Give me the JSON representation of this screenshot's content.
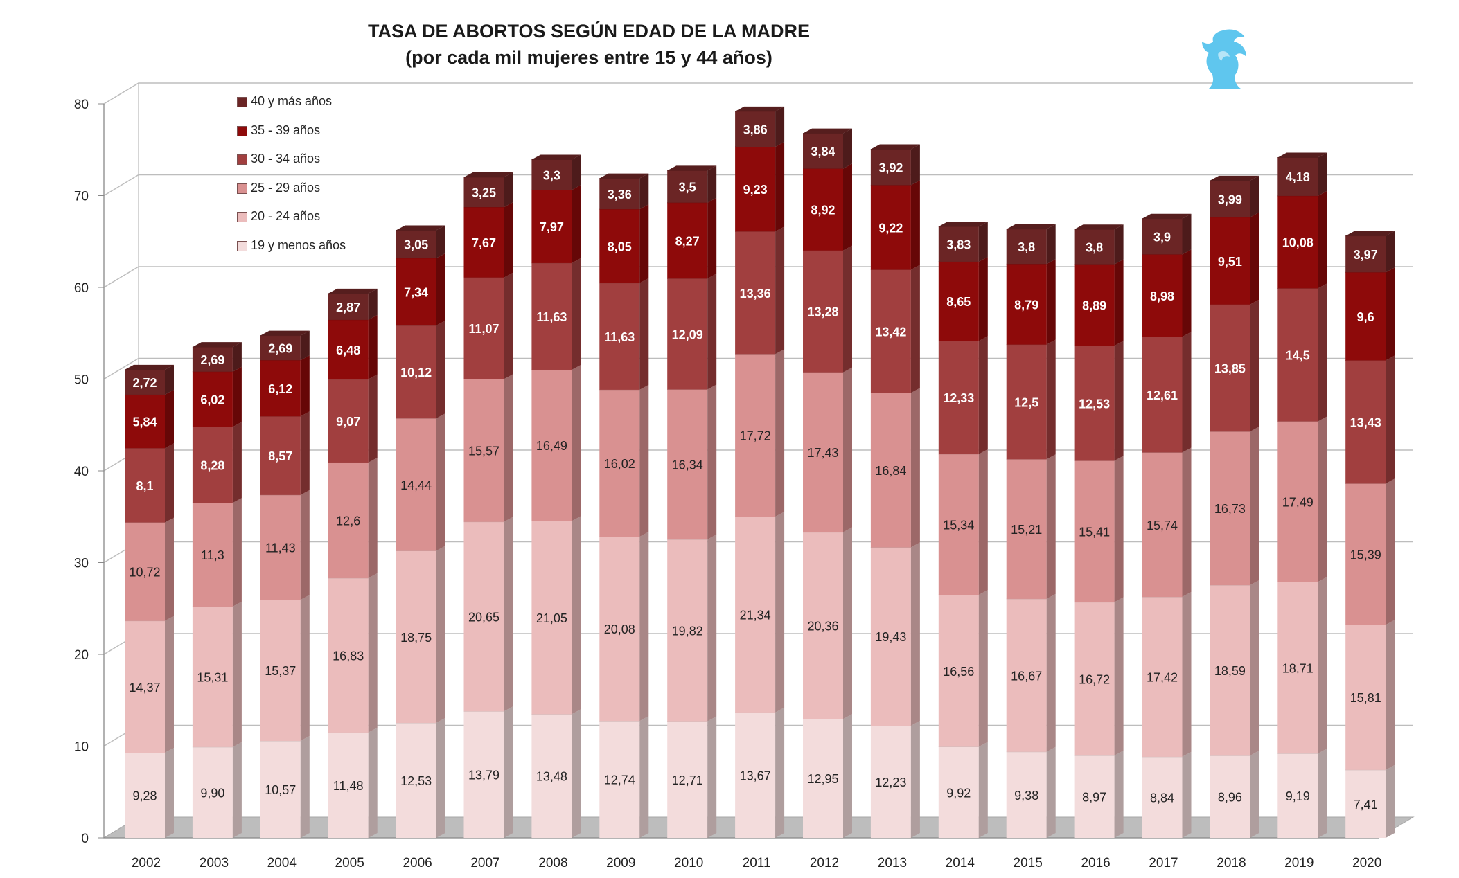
{
  "title": "TASA DE ABORTOS SEGÚN EDAD DE LA MADRE",
  "subtitle": "(por cada mil mujeres entre 15 y 44 años)",
  "colors": {
    "s19": "#f3dcdc",
    "s20": "#ebbcbc",
    "s25": "#d99191",
    "s30": "#a13f3f",
    "s35": "#8e0a0a",
    "s40": "#6b2525",
    "logo": "#5fc6ee"
  },
  "chart_data": {
    "type": "bar",
    "stacked": true,
    "categories": [
      "2002",
      "2003",
      "2004",
      "2005",
      "2006",
      "2007",
      "2008",
      "2009",
      "2010",
      "2011",
      "2012",
      "2013",
      "2014",
      "2015",
      "2016",
      "2017",
      "2018",
      "2019",
      "2020"
    ],
    "ylim": [
      0,
      80
    ],
    "yticks": [
      "0",
      "10",
      "20",
      "30",
      "40",
      "50",
      "60",
      "70",
      "80"
    ],
    "grid": true,
    "legend_position": "top-left",
    "series": [
      {
        "name": "19 y menos años",
        "values": [
          9.28,
          9.9,
          10.57,
          11.48,
          12.53,
          13.79,
          13.48,
          12.74,
          12.71,
          13.67,
          12.95,
          12.23,
          9.92,
          9.38,
          8.97,
          8.84,
          8.96,
          9.19,
          7.41
        ],
        "labels": [
          "9,28",
          "9,90",
          "10,57",
          "11,48",
          "12,53",
          "13,79",
          "13,48",
          "12,74",
          "12,71",
          "13,67",
          "12,95",
          "12,23",
          "9,92",
          "9,38",
          "8,97",
          "8,84",
          "8,96",
          "9,19",
          "7,41"
        ]
      },
      {
        "name": "20 - 24 años",
        "values": [
          14.37,
          15.31,
          15.37,
          16.83,
          18.75,
          20.65,
          21.05,
          20.08,
          19.82,
          21.34,
          20.36,
          19.43,
          16.56,
          16.67,
          16.72,
          17.42,
          18.59,
          18.71,
          15.81
        ],
        "labels": [
          "14,37",
          "15,31",
          "15,37",
          "16,83",
          "18,75",
          "20,65",
          "21,05",
          "20,08",
          "19,82",
          "21,34",
          "20,36",
          "19,43",
          "16,56",
          "16,67",
          "16,72",
          "17,42",
          "18,59",
          "18,71",
          "15,81"
        ]
      },
      {
        "name": "25 - 29 años",
        "values": [
          10.72,
          11.3,
          11.43,
          12.6,
          14.44,
          15.57,
          16.49,
          16.02,
          16.34,
          17.72,
          17.43,
          16.84,
          15.34,
          15.21,
          15.41,
          15.74,
          16.73,
          17.49,
          15.39
        ],
        "labels": [
          "10,72",
          "11,3",
          "11,43",
          "12,6",
          "14,44",
          "15,57",
          "16,49",
          "16,02",
          "16,34",
          "17,72",
          "17,43",
          "16,84",
          "15,34",
          "15,21",
          "15,41",
          "15,74",
          "16,73",
          "17,49",
          "15,39"
        ]
      },
      {
        "name": "30 - 34 años",
        "values": [
          8.1,
          8.28,
          8.57,
          9.07,
          10.12,
          11.07,
          11.63,
          11.63,
          12.09,
          13.36,
          13.28,
          13.42,
          12.33,
          12.5,
          12.53,
          12.61,
          13.85,
          14.5,
          13.43
        ],
        "labels": [
          "8,1",
          "8,28",
          "8,57",
          "9,07",
          "10,12",
          "11,07",
          "11,63",
          "11,63",
          "12,09",
          "13,36",
          "13,28",
          "13,42",
          "12,33",
          "12,5",
          "12,53",
          "12,61",
          "13,85",
          "14,5",
          "13,43"
        ]
      },
      {
        "name": "35 - 39 años",
        "values": [
          5.84,
          6.02,
          6.12,
          6.48,
          7.34,
          7.67,
          7.97,
          8.05,
          8.27,
          9.23,
          8.92,
          9.22,
          8.65,
          8.79,
          8.89,
          8.98,
          9.51,
          10.08,
          9.6
        ],
        "labels": [
          "5,84",
          "6,02",
          "6,12",
          "6,48",
          "7,34",
          "7,67",
          "7,97",
          "8,05",
          "8,27",
          "9,23",
          "8,92",
          "9,22",
          "8,65",
          "8,79",
          "8,89",
          "8,98",
          "9,51",
          "10,08",
          "9,6"
        ]
      },
      {
        "name": "40 y más años",
        "values": [
          2.72,
          2.69,
          2.69,
          2.87,
          3.05,
          3.25,
          3.3,
          3.36,
          3.5,
          3.86,
          3.84,
          3.92,
          3.83,
          3.8,
          3.8,
          3.9,
          3.99,
          4.18,
          3.97
        ],
        "labels": [
          "2,72",
          "2,69",
          "2,69",
          "2,87",
          "3,05",
          "3,25",
          "3,3",
          "3,36",
          "3,5",
          "3,86",
          "3,84",
          "3,92",
          "3,83",
          "3,8",
          "3,8",
          "3,9",
          "3,99",
          "4,18",
          "3,97"
        ]
      }
    ]
  }
}
